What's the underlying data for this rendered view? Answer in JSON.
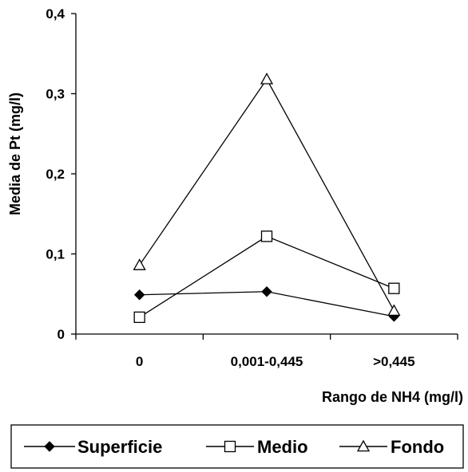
{
  "chart_data": {
    "type": "line",
    "title": "",
    "xlabel": "Rango de  NH4 (mg/l)",
    "ylabel": "Media de Pt (mg/l)",
    "categories": [
      "0",
      "0,001-0,445",
      ">0,445"
    ],
    "ylim": [
      0,
      0.4
    ],
    "yticks": [
      "0",
      "0,1",
      "0,2",
      "0,3",
      "0,4"
    ],
    "grid": false,
    "legend_position": "bottom",
    "series": [
      {
        "name": "Superficie",
        "marker": "filled-diamond",
        "values": [
          0.049,
          0.053,
          0.022
        ]
      },
      {
        "name": "Medio",
        "marker": "open-square",
        "values": [
          0.021,
          0.122,
          0.057
        ]
      },
      {
        "name": "Fondo",
        "marker": "open-triangle",
        "values": [
          0.086,
          0.318,
          0.029
        ]
      }
    ],
    "colors": {
      "line": "#000000",
      "background": "#ffffff"
    }
  }
}
